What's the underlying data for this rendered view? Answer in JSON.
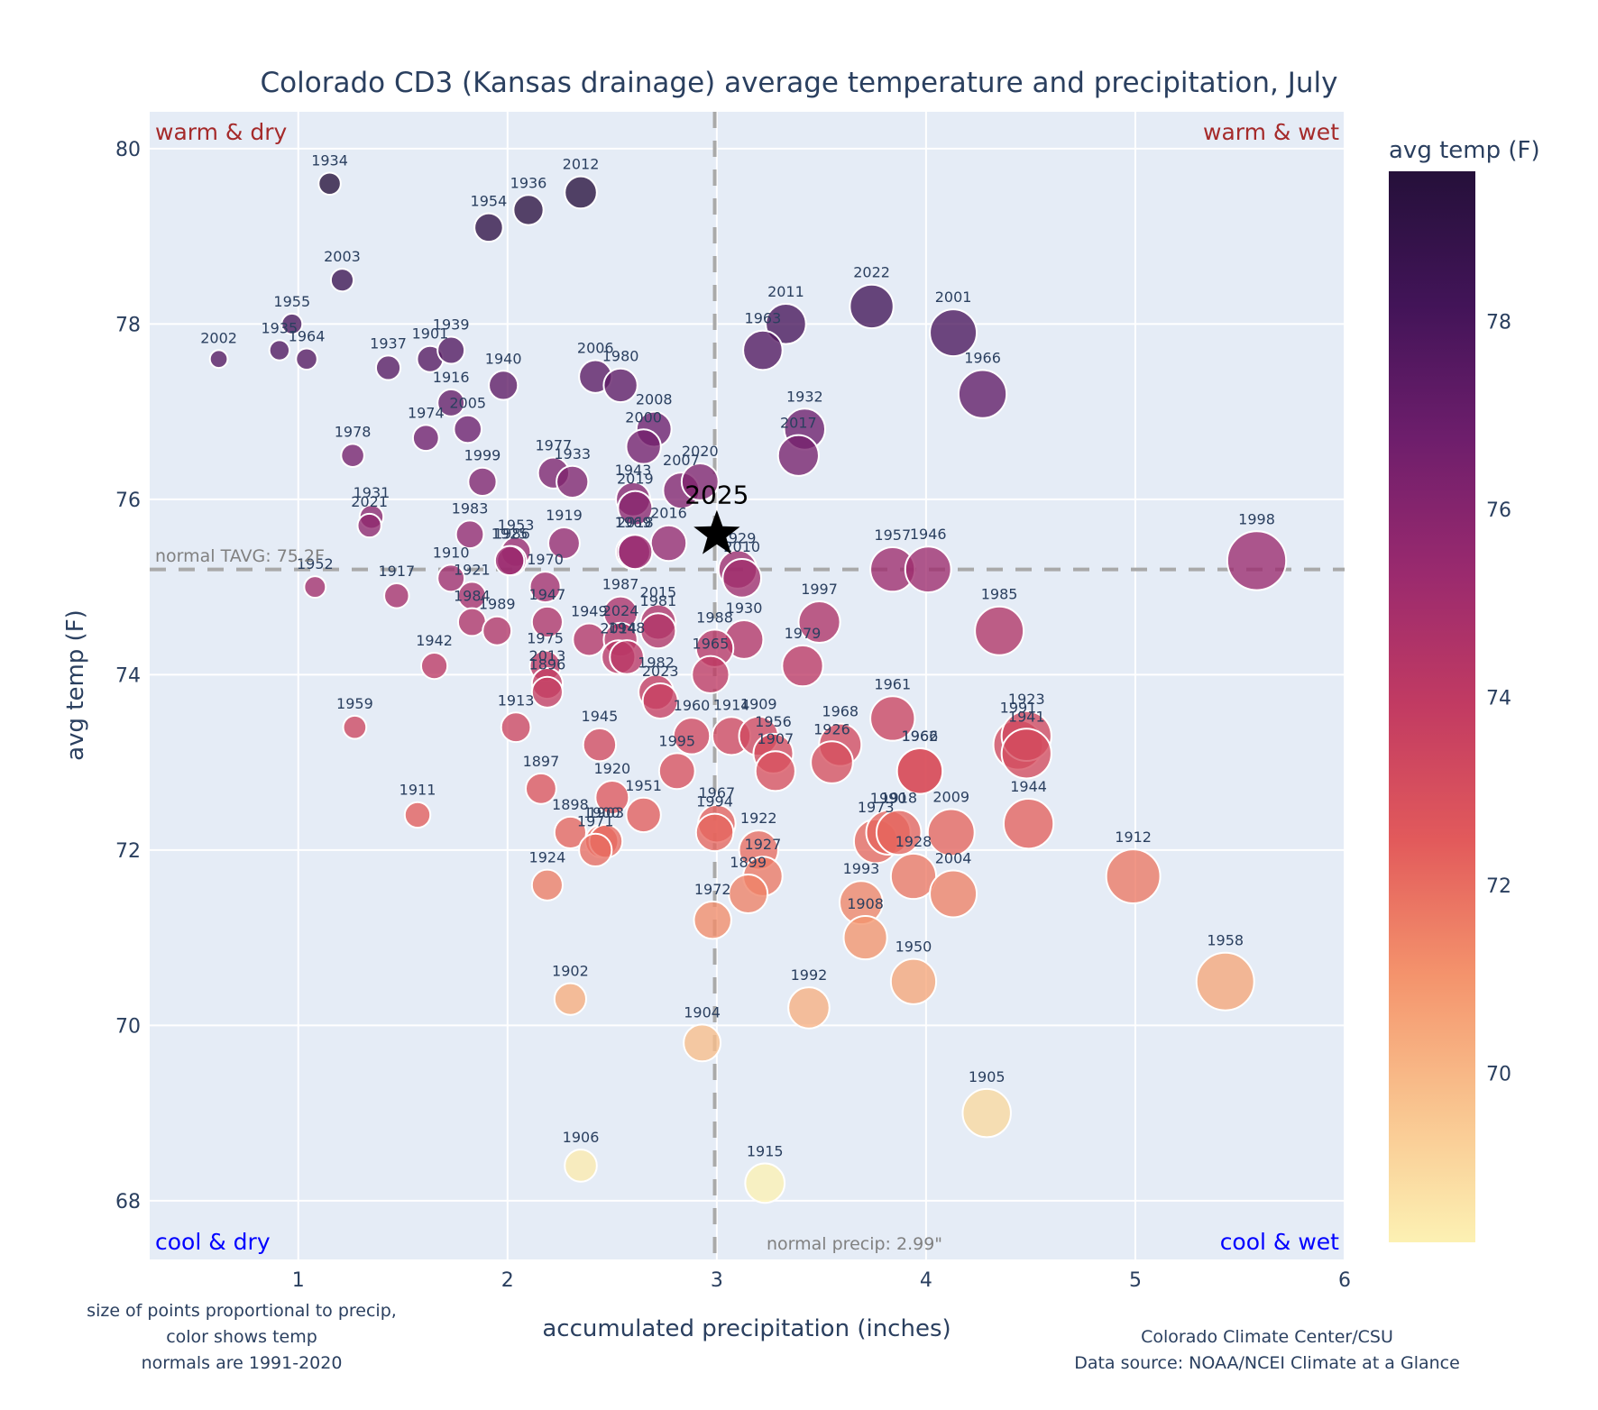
{
  "chart_data": {
    "type": "scatter",
    "title": "Colorado CD3 (Kansas drainage) average temperature and precipitation, July",
    "xlabel": "accumulated precipitation (inches)",
    "ylabel": "avg temp (F)",
    "xlim": [
      0.29,
      6.0
    ],
    "ylim": [
      67.33,
      80.42
    ],
    "xticks": [
      1,
      2,
      3,
      4,
      5,
      6
    ],
    "yticks": [
      68,
      70,
      72,
      74,
      76,
      78,
      80
    ],
    "grid": true,
    "colorbar": {
      "title": "avg temp (F)",
      "range": [
        68.2,
        79.6
      ],
      "ticks": [
        70,
        72,
        74,
        76,
        78
      ],
      "colorscale": [
        "#fcf1b3",
        "#f9c48f",
        "#f4936c",
        "#e25a5b",
        "#c23b62",
        "#9a2a6e",
        "#6e1e6c",
        "#421458",
        "#25103a"
      ]
    },
    "normals": {
      "tavg": 75.2,
      "tavg_label": "normal TAVG: 75.2F",
      "precip": 2.99,
      "precip_label": "normal precip: 2.99\""
    },
    "quadrants": {
      "top_left": "warm & dry",
      "top_right": "warm & wet",
      "bottom_left": "cool & dry",
      "bottom_right": "cool & wet"
    },
    "highlight": {
      "year": "2025",
      "x": 3.0,
      "y": 75.6,
      "marker": "star"
    },
    "points": [
      {
        "year": "1934",
        "x": 1.15,
        "y": 79.6
      },
      {
        "year": "2012",
        "x": 2.35,
        "y": 79.5
      },
      {
        "year": "1936",
        "x": 2.1,
        "y": 79.3
      },
      {
        "year": "1954",
        "x": 1.91,
        "y": 79.1
      },
      {
        "year": "2003",
        "x": 1.21,
        "y": 78.5
      },
      {
        "year": "1955",
        "x": 0.97,
        "y": 78.0
      },
      {
        "year": "1935",
        "x": 0.91,
        "y": 77.7
      },
      {
        "year": "1964",
        "x": 1.04,
        "y": 77.6
      },
      {
        "year": "2002",
        "x": 0.62,
        "y": 77.6
      },
      {
        "year": "1937",
        "x": 1.43,
        "y": 77.5
      },
      {
        "year": "1901",
        "x": 1.63,
        "y": 77.6
      },
      {
        "year": "1939",
        "x": 1.73,
        "y": 77.7
      },
      {
        "year": "1916",
        "x": 1.73,
        "y": 77.1
      },
      {
        "year": "1940",
        "x": 1.98,
        "y": 77.3
      },
      {
        "year": "2006",
        "x": 2.42,
        "y": 77.4
      },
      {
        "year": "1980",
        "x": 2.54,
        "y": 77.3
      },
      {
        "year": "2005",
        "x": 1.81,
        "y": 76.8
      },
      {
        "year": "1974",
        "x": 1.61,
        "y": 76.7
      },
      {
        "year": "1978",
        "x": 1.26,
        "y": 76.5
      },
      {
        "year": "2008",
        "x": 2.7,
        "y": 76.8
      },
      {
        "year": "2000",
        "x": 2.65,
        "y": 76.6
      },
      {
        "year": "1999",
        "x": 1.88,
        "y": 76.2
      },
      {
        "year": "1977",
        "x": 2.22,
        "y": 76.3
      },
      {
        "year": "1933",
        "x": 2.31,
        "y": 76.2
      },
      {
        "year": "1943",
        "x": 2.6,
        "y": 76.0
      },
      {
        "year": "2019",
        "x": 2.61,
        "y": 75.9
      },
      {
        "year": "2007",
        "x": 2.83,
        "y": 76.1
      },
      {
        "year": "2020",
        "x": 2.92,
        "y": 76.2
      },
      {
        "year": "1931",
        "x": 1.35,
        "y": 75.8
      },
      {
        "year": "2021",
        "x": 1.34,
        "y": 75.7
      },
      {
        "year": "1983",
        "x": 1.82,
        "y": 75.6
      },
      {
        "year": "1953",
        "x": 2.04,
        "y": 75.4
      },
      {
        "year": "1986",
        "x": 2.02,
        "y": 75.3
      },
      {
        "year": "1919",
        "x": 2.27,
        "y": 75.5
      },
      {
        "year": "1969",
        "x": 2.6,
        "y": 75.4
      },
      {
        "year": "2016",
        "x": 2.77,
        "y": 75.5
      },
      {
        "year": "1925",
        "x": 2.01,
        "y": 75.3
      },
      {
        "year": "2018",
        "x": 2.61,
        "y": 75.4
      },
      {
        "year": "1929",
        "x": 3.1,
        "y": 75.2
      },
      {
        "year": "2010",
        "x": 3.12,
        "y": 75.1
      },
      {
        "year": "1957",
        "x": 3.84,
        "y": 75.2
      },
      {
        "year": "1946",
        "x": 4.01,
        "y": 75.2
      },
      {
        "year": "1998",
        "x": 5.58,
        "y": 75.3
      },
      {
        "year": "1952",
        "x": 1.08,
        "y": 75.0
      },
      {
        "year": "1917",
        "x": 1.47,
        "y": 74.9
      },
      {
        "year": "1910",
        "x": 1.73,
        "y": 75.1
      },
      {
        "year": "1921",
        "x": 1.83,
        "y": 74.9
      },
      {
        "year": "1984",
        "x": 1.83,
        "y": 74.6
      },
      {
        "year": "1989",
        "x": 1.95,
        "y": 74.5
      },
      {
        "year": "1970",
        "x": 2.18,
        "y": 75.0
      },
      {
        "year": "1947",
        "x": 2.19,
        "y": 74.6
      },
      {
        "year": "1949",
        "x": 2.39,
        "y": 74.4
      },
      {
        "year": "1987",
        "x": 2.54,
        "y": 74.7
      },
      {
        "year": "2024",
        "x": 2.54,
        "y": 74.4
      },
      {
        "year": "2014",
        "x": 2.53,
        "y": 74.2
      },
      {
        "year": "1948",
        "x": 2.57,
        "y": 74.2
      },
      {
        "year": "2015",
        "x": 2.72,
        "y": 74.6
      },
      {
        "year": "1981",
        "x": 2.72,
        "y": 74.5
      },
      {
        "year": "1930",
        "x": 3.13,
        "y": 74.4
      },
      {
        "year": "1997",
        "x": 3.49,
        "y": 74.6
      },
      {
        "year": "1985",
        "x": 4.35,
        "y": 74.5
      },
      {
        "year": "1942",
        "x": 1.65,
        "y": 74.1
      },
      {
        "year": "1975",
        "x": 2.18,
        "y": 74.1
      },
      {
        "year": "2013",
        "x": 2.19,
        "y": 73.9
      },
      {
        "year": "1896",
        "x": 2.19,
        "y": 73.8
      },
      {
        "year": "1988",
        "x": 2.99,
        "y": 74.3
      },
      {
        "year": "1965",
        "x": 2.97,
        "y": 74.0
      },
      {
        "year": "1982",
        "x": 2.71,
        "y": 73.8
      },
      {
        "year": "2023",
        "x": 2.73,
        "y": 73.7
      },
      {
        "year": "1979",
        "x": 3.41,
        "y": 74.1
      },
      {
        "year": "1959",
        "x": 1.27,
        "y": 73.4
      },
      {
        "year": "1913",
        "x": 2.04,
        "y": 73.4
      },
      {
        "year": "1945",
        "x": 2.44,
        "y": 73.2
      },
      {
        "year": "1960",
        "x": 2.88,
        "y": 73.3
      },
      {
        "year": "1914",
        "x": 3.07,
        "y": 73.3
      },
      {
        "year": "1909",
        "x": 3.2,
        "y": 73.3
      },
      {
        "year": "1995",
        "x": 2.81,
        "y": 72.9
      },
      {
        "year": "1956",
        "x": 3.27,
        "y": 73.1
      },
      {
        "year": "1907",
        "x": 3.28,
        "y": 72.9
      },
      {
        "year": "1968",
        "x": 3.59,
        "y": 73.2
      },
      {
        "year": "1926",
        "x": 3.55,
        "y": 73.0
      },
      {
        "year": "1961",
        "x": 3.84,
        "y": 73.5
      },
      {
        "year": "1962",
        "x": 3.97,
        "y": 72.9
      },
      {
        "year": "1966b",
        "x": 3.97,
        "y": 72.9
      },
      {
        "year": "1991",
        "x": 4.44,
        "y": 73.2
      },
      {
        "year": "1923",
        "x": 4.48,
        "y": 73.3
      },
      {
        "year": "1941",
        "x": 4.48,
        "y": 73.1
      },
      {
        "year": "1897",
        "x": 2.16,
        "y": 72.7
      },
      {
        "year": "1920",
        "x": 2.5,
        "y": 72.6
      },
      {
        "year": "1951",
        "x": 2.65,
        "y": 72.4
      },
      {
        "year": "1911",
        "x": 1.57,
        "y": 72.4
      },
      {
        "year": "1898",
        "x": 2.3,
        "y": 72.2
      },
      {
        "year": "1900",
        "x": 2.45,
        "y": 72.1
      },
      {
        "year": "1903",
        "x": 2.47,
        "y": 72.1
      },
      {
        "year": "1971",
        "x": 2.42,
        "y": 72.0
      },
      {
        "year": "1967",
        "x": 3.0,
        "y": 72.3
      },
      {
        "year": "1994",
        "x": 2.99,
        "y": 72.2
      },
      {
        "year": "1922",
        "x": 3.2,
        "y": 72.0
      },
      {
        "year": "1927",
        "x": 3.22,
        "y": 71.7
      },
      {
        "year": "1899",
        "x": 3.15,
        "y": 71.5
      },
      {
        "year": "1973",
        "x": 3.76,
        "y": 72.1
      },
      {
        "year": "1990",
        "x": 3.82,
        "y": 72.2
      },
      {
        "year": "1918",
        "x": 3.87,
        "y": 72.2
      },
      {
        "year": "2009",
        "x": 4.12,
        "y": 72.2
      },
      {
        "year": "1944",
        "x": 4.49,
        "y": 72.3
      },
      {
        "year": "1928",
        "x": 3.94,
        "y": 71.7
      },
      {
        "year": "2004",
        "x": 4.13,
        "y": 71.5
      },
      {
        "year": "1924",
        "x": 2.19,
        "y": 71.6
      },
      {
        "year": "1993",
        "x": 3.69,
        "y": 71.4
      },
      {
        "year": "1912",
        "x": 4.99,
        "y": 71.7
      },
      {
        "year": "1972",
        "x": 2.98,
        "y": 71.2
      },
      {
        "year": "1908",
        "x": 3.71,
        "y": 71.0
      },
      {
        "year": "1950",
        "x": 3.94,
        "y": 70.5
      },
      {
        "year": "1958",
        "x": 5.43,
        "y": 70.5
      },
      {
        "year": "1902",
        "x": 2.3,
        "y": 70.3
      },
      {
        "year": "1992",
        "x": 3.44,
        "y": 70.2
      },
      {
        "year": "1904",
        "x": 2.93,
        "y": 69.8
      },
      {
        "year": "1905",
        "x": 4.29,
        "y": 69.0
      },
      {
        "year": "1906",
        "x": 2.35,
        "y": 68.4
      },
      {
        "year": "1915",
        "x": 3.23,
        "y": 68.2
      },
      {
        "year": "2022",
        "x": 3.74,
        "y": 78.2
      },
      {
        "year": "2011",
        "x": 3.33,
        "y": 78.0
      },
      {
        "year": "1963",
        "x": 3.22,
        "y": 77.7
      },
      {
        "year": "2001",
        "x": 4.13,
        "y": 77.9
      },
      {
        "year": "1966",
        "x": 4.27,
        "y": 77.2
      },
      {
        "year": "1932",
        "x": 3.42,
        "y": 76.8
      },
      {
        "year": "2017",
        "x": 3.39,
        "y": 76.5
      }
    ]
  },
  "annotations": {
    "footnote_left": [
      "size of points proportional to precip,",
      "color shows temp",
      "normals are 1991-2020"
    ],
    "footnote_right": [
      "Colorado Climate Center/CSU",
      "Data source: NOAA/NCEI Climate at a Glance"
    ]
  }
}
